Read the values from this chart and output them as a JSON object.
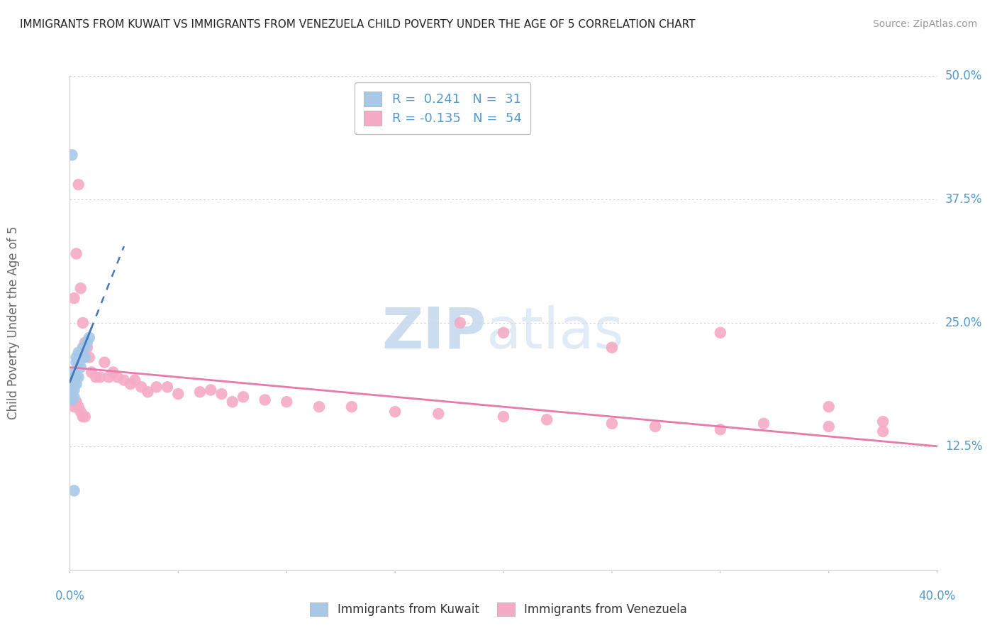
{
  "title": "IMMIGRANTS FROM KUWAIT VS IMMIGRANTS FROM VENEZUELA CHILD POVERTY UNDER THE AGE OF 5 CORRELATION CHART",
  "source": "Source: ZipAtlas.com",
  "ylabel": "Child Poverty Under the Age of 5",
  "xlim": [
    0.0,
    0.4
  ],
  "ylim": [
    0.0,
    0.5
  ],
  "xtick_labels": [
    "0.0%",
    "40.0%"
  ],
  "xtick_values": [
    0.0,
    0.4
  ],
  "ytick_labels": [
    "12.5%",
    "25.0%",
    "37.5%",
    "50.0%"
  ],
  "ytick_values": [
    0.125,
    0.25,
    0.375,
    0.5
  ],
  "legend_r_entries": [
    {
      "label": "R =  0.241   N =  31",
      "color": "#a8c4e0"
    },
    {
      "label": "R = -0.135   N =  54",
      "color": "#f5a8c0"
    }
  ],
  "kuwait_color": "#a8c8e8",
  "venezuela_color": "#f5aac5",
  "kuwait_line_color": "#4477bb",
  "venezuela_line_color": "#e87aaa",
  "kuwait_x": [
    0.001,
    0.001,
    0.001,
    0.001,
    0.001,
    0.001,
    0.001,
    0.002,
    0.002,
    0.002,
    0.002,
    0.002,
    0.002,
    0.003,
    0.003,
    0.003,
    0.003,
    0.004,
    0.004,
    0.004,
    0.005,
    0.005,
    0.005,
    0.006,
    0.006,
    0.007,
    0.007,
    0.008,
    0.009,
    0.002,
    0.001
  ],
  "kuwait_y": [
    0.185,
    0.195,
    0.175,
    0.19,
    0.18,
    0.172,
    0.178,
    0.195,
    0.2,
    0.188,
    0.182,
    0.175,
    0.192,
    0.215,
    0.21,
    0.195,
    0.188,
    0.22,
    0.21,
    0.195,
    0.215,
    0.205,
    0.218,
    0.215,
    0.225,
    0.225,
    0.215,
    0.23,
    0.235,
    0.08,
    0.42
  ],
  "venezuela_x": [
    0.002,
    0.003,
    0.004,
    0.005,
    0.006,
    0.007,
    0.008,
    0.009,
    0.01,
    0.012,
    0.014,
    0.016,
    0.018,
    0.02,
    0.022,
    0.025,
    0.028,
    0.03,
    0.033,
    0.036,
    0.04,
    0.045,
    0.05,
    0.06,
    0.065,
    0.07,
    0.075,
    0.08,
    0.09,
    0.1,
    0.115,
    0.13,
    0.15,
    0.17,
    0.2,
    0.22,
    0.25,
    0.27,
    0.3,
    0.32,
    0.35,
    0.375,
    0.35,
    0.375,
    0.002,
    0.003,
    0.004,
    0.005,
    0.006,
    0.007,
    0.18,
    0.2,
    0.25,
    0.3
  ],
  "venezuela_y": [
    0.275,
    0.32,
    0.39,
    0.285,
    0.25,
    0.23,
    0.225,
    0.215,
    0.2,
    0.195,
    0.195,
    0.21,
    0.195,
    0.2,
    0.195,
    0.192,
    0.188,
    0.192,
    0.185,
    0.18,
    0.185,
    0.185,
    0.178,
    0.18,
    0.182,
    0.178,
    0.17,
    0.175,
    0.172,
    0.17,
    0.165,
    0.165,
    0.16,
    0.158,
    0.155,
    0.152,
    0.148,
    0.145,
    0.142,
    0.148,
    0.145,
    0.14,
    0.165,
    0.15,
    0.165,
    0.17,
    0.165,
    0.16,
    0.155,
    0.155,
    0.25,
    0.24,
    0.225,
    0.24
  ],
  "kuwait_trendline_x": [
    0.0,
    0.025
  ],
  "kuwait_trendline_y_start": 0.19,
  "kuwait_trendline_slope": 5.5,
  "venezuela_trendline_x": [
    0.0,
    0.4
  ],
  "venezuela_trendline_y_start": 0.205,
  "venezuela_trendline_y_end": 0.125,
  "background_color": "#ffffff",
  "grid_color": "#cccccc",
  "title_fontsize": 11,
  "tick_label_color": "#5599cc"
}
